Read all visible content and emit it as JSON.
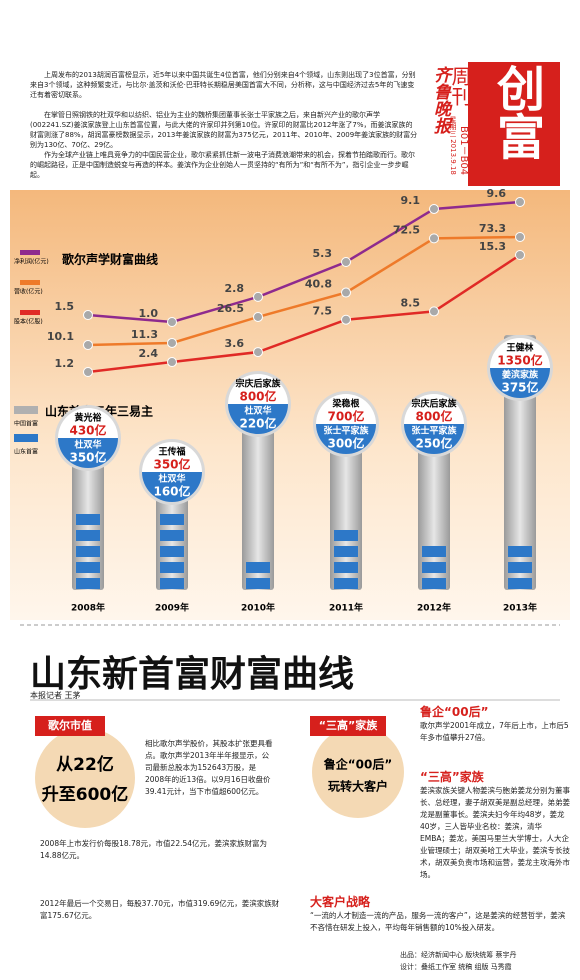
{
  "header": {
    "logo": "齐鲁晚报",
    "section": "周刊",
    "title": "创富",
    "date": "星期三 2013.9.18",
    "pages": "B01－B04"
  },
  "article": [
    "上周发布的2013胡润百富榜显示，近5年以来中国共诞生4位首富，他们分别来自4个领域，山东则出现了3位首富，分别来自3个领域，这种频繁变迁，与比尔·盖茨和沃伦·巴菲特长期稳居美国首富大不同，分析称，这与中国经济过去5年的飞速变迁有着密切联系。",
    "在掌管日照钢铁的杜双华和以纺织、铝业为主业的魏桥集团董事长张士平家族之后，来自新兴产业的歌尔声学(002241.SZ)姜滨家族登上山东首富位置，与此大佬的许家印并列第10位。许家印的财富比2012年涨了7%，而姜滨家族的财富则涨了88%，胡润富豪榜数据显示，2013年姜滨家族的财富为375亿元，2011年、2010年、2009年姜滨家族的财富分别为130亿、70亿、29亿。",
    "作为全球产业链上唯具竞争力的中国民营企业，歌尔紧紧抓住新一波电子消费浪潮带来的机会，探着节拍踏歌而行。歌尔的崛起路径，正是中国制造蜕变与再造的样本。姜滨作为企业创始人一贯坚持的“有所为”和“有所不为”，指引企业一步步崛起。"
  ],
  "chart_data": {
    "type": "line",
    "title": "歌尔声学财富曲线",
    "categories": [
      "2008年",
      "2009年",
      "2010年",
      "2011年",
      "2012年",
      "2013年"
    ],
    "series": [
      {
        "name": "净利润(亿元)",
        "color": "#8e2a8e",
        "values": [
          1.5,
          1,
          2.8,
          5.3,
          9.1,
          9.6
        ],
        "value_labels": [
          "1.5",
          "1.0",
          "2.8",
          "5.3",
          "9.1",
          "9.6"
        ]
      },
      {
        "name": "营收(亿元)",
        "color": "#ee7a2a",
        "values": [
          10.1,
          11.3,
          26.5,
          40.8,
          72.5,
          73.3
        ],
        "value_labels": [
          "10.1",
          "11.3",
          "26.5",
          "40.8",
          "72.5",
          "73.3"
        ]
      },
      {
        "name": "股本(亿股)",
        "color": "#e02a26",
        "values": [
          1.2,
          2.4,
          3.6,
          7.5,
          8.5,
          15.3
        ],
        "value_labels": [
          "1.2",
          "2.4",
          "3.6",
          "7.5",
          "8.5",
          "15.3"
        ]
      }
    ]
  },
  "richest": {
    "title": "山东首富五年三易主",
    "legend": [
      "中国首富",
      "山东首富"
    ],
    "years": [
      {
        "china": "黄光裕",
        "china_amount": "430亿",
        "shandong": "杜双华",
        "shandong_amount": "350亿"
      },
      {
        "china": "王传福",
        "china_amount": "350亿",
        "shandong": "杜双华",
        "shandong_amount": "160亿"
      },
      {
        "china": "宗庆后家族",
        "china_amount": "800亿",
        "shandong": "杜双华",
        "shandong_amount": "220亿"
      },
      {
        "china": "梁稳根",
        "china_amount": "700亿",
        "shandong": "张士平家族",
        "shandong_amount": "300亿"
      },
      {
        "china": "宗庆后家族",
        "china_amount": "800亿",
        "shandong": "张士平家族",
        "shandong_amount": "250亿"
      },
      {
        "china": "王健林",
        "china_amount": "1350亿",
        "shandong": "姜滨家族",
        "shandong_amount": "375亿"
      }
    ]
  },
  "feature": {
    "title": "山东新首富财富曲线",
    "byline": "本报记者 王茅",
    "left_tag": "歌尔市值",
    "left_circle": [
      "从22亿",
      "升至600亿"
    ],
    "para1": "相比歌尔声学股价，其股本扩张更具看点。歌尔声学2013年半年报显示，公司最新总股本为152643万股，是2008年的近13倍。以9月16日收盘价39.41元计，当下市值超600亿元。",
    "para2": "2008年上市发行价每股18.78元，市值22.54亿元，姜滨家族财富为14.88亿元。",
    "para3": "2012年最后一个交易日，每股37.70元，市值319.69亿元，姜滨家族财富175.67亿元。",
    "right_tag": "“三高”家族",
    "right_circle": [
      "鲁企“00后”",
      "玩转大客户"
    ],
    "h1": "鲁企“00后”",
    "p1": "歌尔声学2001年成立，7年后上市，上市后5年多市值攀升27倍。",
    "h2": "“三高”家族",
    "p2": "姜滨家族关键人物姜滨与胞弟姜龙分别为董事长、总经理，妻子胡双美是副总经理，弟弟姜龙是副董事长。姜滨夫妇今年均48岁，姜龙40岁，三人皆毕业名校：姜滨，清华EMBA；姜龙，美国马里兰大学博士，人大企业管理硕士；胡双美哈工大毕业，姜滨专长技术，胡双美负责市场和运营，姜龙主攻海外市场。",
    "h3": "大客户战略",
    "p3": "“一流的人才制造一流的产品，服务一流的客户”，这是姜滨的经营哲学，姜滨不吝惜在研发上投入，平均每年销售额的10%投入研发。"
  },
  "footer": [
    "出品：经济新闻中心  版块统筹 蔡宇丹",
    "设计：叠纸工作室  统稿  组版 马秀霞"
  ]
}
